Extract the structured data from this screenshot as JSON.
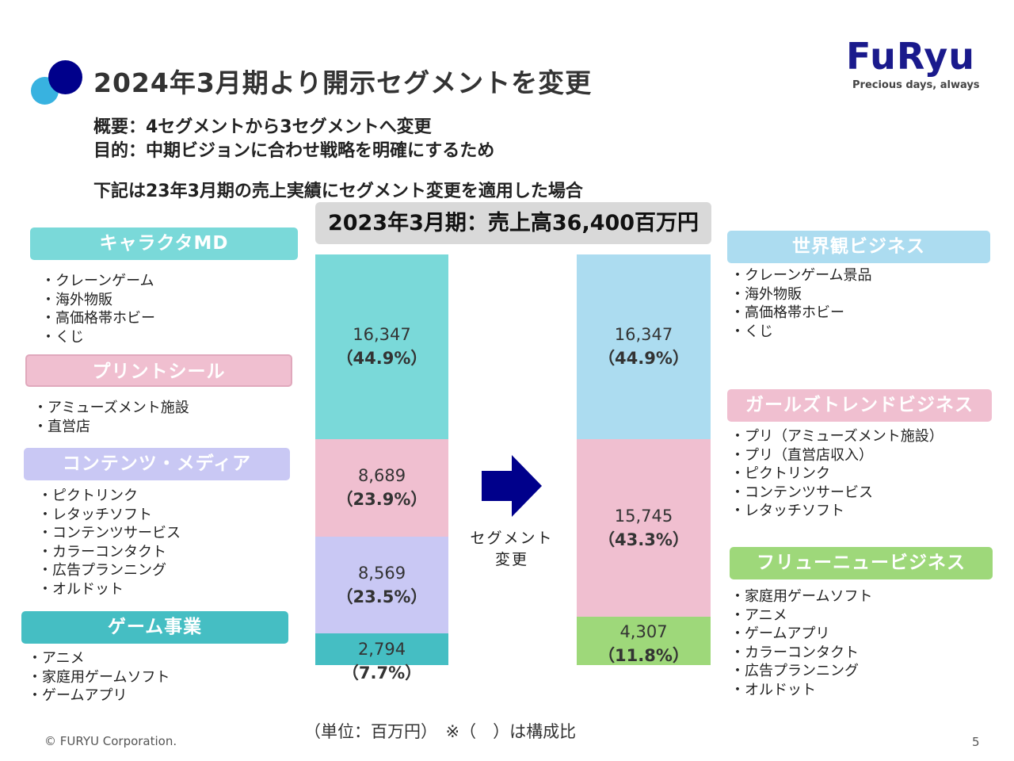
{
  "title": "2024年3月期より開示セグメントを変更",
  "summary": "概要：4セグメントから3セグメントへ変更",
  "purpose": "目的：中期ビジョンに合わせ戦略を明確にするため",
  "note": "下記は23年3月期の売上実績にセグメント変更を適用した場合",
  "logo": {
    "text": "FuRyu",
    "tagline": "Precious days, always"
  },
  "chart_header": "2023年3月期：売上高36,400百万円",
  "arrow_label": [
    "セグメント",
    "変更"
  ],
  "left_segments": [
    {
      "name": "キャラクタMD",
      "color": "#7ad9d9",
      "items": [
        "・クレーンゲーム",
        "・海外物販",
        "・高価格帯ホビー",
        "・くじ"
      ]
    },
    {
      "name": "プリントシール",
      "color": "#f0bfd0",
      "items": [
        "・アミューズメント施設",
        "・直営店"
      ]
    },
    {
      "name": "コンテンツ・メディア",
      "color": "#c9c8f4",
      "items": [
        "・ピクトリンク",
        "・レタッチソフト",
        "・コンテンツサービス",
        "・カラーコンタクト",
        "・広告プランニング",
        "・オルドット"
      ]
    },
    {
      "name": "ゲーム事業",
      "color": "#45bec3",
      "items": [
        "・アニメ",
        "・家庭用ゲームソフト",
        "・ゲームアプリ"
      ]
    }
  ],
  "right_segments": [
    {
      "name": "世界観ビジネス",
      "color": "#acdcf0",
      "items": [
        "・クレーンゲーム景品",
        "・海外物販",
        "・高価格帯ホビー",
        "・くじ"
      ]
    },
    {
      "name": "ガールズトレンドビジネス",
      "color": "#f0bfd0",
      "items": [
        "・プリ（アミューズメント施設）",
        "・プリ（直営店収入）",
        "・ピクトリンク",
        "・コンテンツサービス",
        "・レタッチソフト"
      ]
    },
    {
      "name": "フリューニュービジネス",
      "color": "#9ed87a",
      "items": [
        "・家庭用ゲームソフト",
        "・アニメ",
        "・ゲームアプリ",
        "・カラーコンタクト",
        "・広告プランニング",
        "・オルドット"
      ]
    }
  ],
  "chart_data": {
    "type": "bar",
    "stacked": true,
    "total": 36400,
    "bars": [
      {
        "segments": [
          {
            "series": "キャラクタMD",
            "value": 16347,
            "label": "16,347",
            "pct": "（44.9%）",
            "color": "#7ad9d9"
          },
          {
            "series": "プリントシール",
            "value": 8689,
            "label": "8,689",
            "pct": "（23.9%）",
            "color": "#f0bfd0"
          },
          {
            "series": "コンテンツ・メディア",
            "value": 8569,
            "label": "8,569",
            "pct": "（23.5%）",
            "color": "#c9c8f4"
          },
          {
            "series": "ゲーム事業",
            "value": 2794,
            "label": "2,794",
            "pct": "（7.7%）",
            "color": "#45bec3"
          }
        ]
      },
      {
        "segments": [
          {
            "series": "世界観ビジネス",
            "value": 16347,
            "label": "16,347",
            "pct": "（44.9%）",
            "color": "#acdcf0"
          },
          {
            "series": "ガールズトレンドビジネス",
            "value": 15745,
            "label": "15,745",
            "pct": "（43.3%）",
            "color": "#f0bfd0"
          },
          {
            "series": "フリューニュービジネス",
            "value": 4307,
            "label": "4,307",
            "pct": "（11.8%）",
            "color": "#9ed87a"
          }
        ]
      }
    ]
  },
  "unit_note": "（単位：百万円）　※（　）は構成比",
  "copyright": "© FURYU Corporation.",
  "page_number": "5",
  "accent": "#00008b"
}
